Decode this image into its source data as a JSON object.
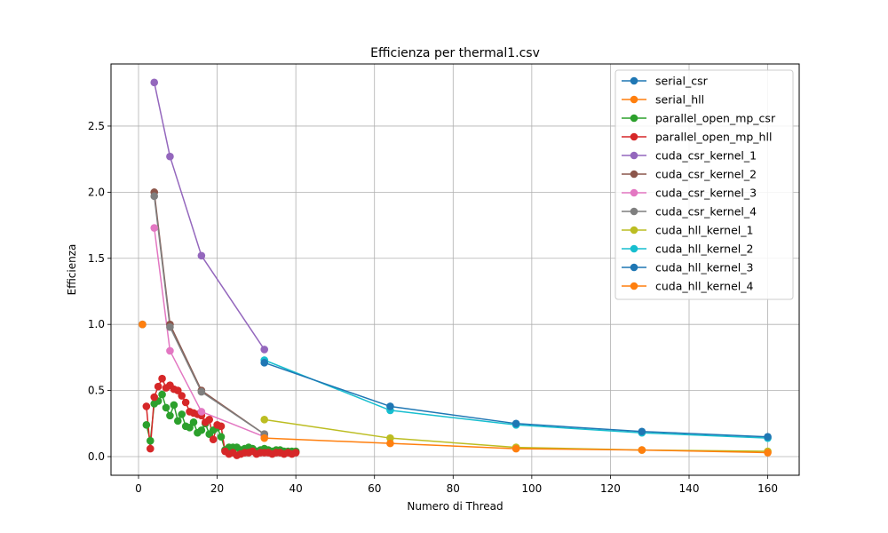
{
  "chart_data": {
    "type": "line",
    "title": "Efficienza per thermal1.csv",
    "xlabel": "Numero di Thread",
    "ylabel": "Efficienza",
    "xlim": [
      -7,
      168
    ],
    "ylim": [
      -0.141,
      2.97
    ],
    "xticks": [
      0,
      20,
      40,
      60,
      80,
      100,
      120,
      140,
      160
    ],
    "yticks": [
      0.0,
      0.5,
      1.0,
      1.5,
      2.0,
      2.5
    ],
    "xtick_labels": [
      "0",
      "20",
      "40",
      "60",
      "80",
      "100",
      "120",
      "140",
      "160"
    ],
    "ytick_labels": [
      "0.0",
      "0.5",
      "1.0",
      "1.5",
      "2.0",
      "2.5"
    ],
    "grid": true,
    "legend_position": "top-right",
    "series": [
      {
        "name": "serial_csr",
        "color": "#1f77b4",
        "x": [
          1
        ],
        "y": [
          1.0
        ]
      },
      {
        "name": "serial_hll",
        "color": "#ff7f0e",
        "x": [
          1
        ],
        "y": [
          1.0
        ]
      },
      {
        "name": "parallel_open_mp_csr",
        "color": "#2ca02c",
        "x": [
          2,
          3,
          4,
          5,
          6,
          7,
          8,
          9,
          10,
          11,
          12,
          13,
          14,
          15,
          16,
          17,
          18,
          19,
          20,
          21,
          22,
          23,
          24,
          25,
          26,
          27,
          28,
          29,
          30,
          31,
          32,
          33,
          34,
          35,
          36,
          37,
          38,
          39,
          40
        ],
        "y": [
          0.24,
          0.12,
          0.4,
          0.42,
          0.47,
          0.37,
          0.31,
          0.39,
          0.27,
          0.32,
          0.23,
          0.22,
          0.26,
          0.18,
          0.2,
          0.25,
          0.17,
          0.2,
          0.22,
          0.15,
          0.05,
          0.07,
          0.07,
          0.07,
          0.05,
          0.06,
          0.07,
          0.06,
          0.04,
          0.05,
          0.06,
          0.05,
          0.04,
          0.05,
          0.05,
          0.04,
          0.04,
          0.04,
          0.04
        ]
      },
      {
        "name": "parallel_open_mp_hll",
        "color": "#d62728",
        "x": [
          2,
          3,
          4,
          5,
          6,
          7,
          8,
          9,
          10,
          11,
          12,
          13,
          14,
          15,
          16,
          17,
          18,
          19,
          20,
          21,
          22,
          23,
          24,
          25,
          26,
          27,
          28,
          29,
          30,
          31,
          32,
          33,
          34,
          35,
          36,
          37,
          38,
          39,
          40
        ],
        "y": [
          0.38,
          0.06,
          0.45,
          0.53,
          0.59,
          0.52,
          0.54,
          0.51,
          0.5,
          0.46,
          0.41,
          0.34,
          0.33,
          0.32,
          0.31,
          0.26,
          0.28,
          0.13,
          0.24,
          0.23,
          0.04,
          0.02,
          0.03,
          0.01,
          0.02,
          0.03,
          0.03,
          0.04,
          0.02,
          0.03,
          0.03,
          0.03,
          0.02,
          0.03,
          0.03,
          0.02,
          0.03,
          0.02,
          0.03
        ]
      },
      {
        "name": "cuda_csr_kernel_1",
        "color": "#9467bd",
        "x": [
          4,
          8,
          16,
          32
        ],
        "y": [
          2.83,
          2.27,
          1.52,
          0.81
        ]
      },
      {
        "name": "cuda_csr_kernel_2",
        "color": "#8c564b",
        "x": [
          4,
          8,
          16,
          32
        ],
        "y": [
          2.0,
          1.0,
          0.5,
          0.17
        ]
      },
      {
        "name": "cuda_csr_kernel_3",
        "color": "#e377c2",
        "x": [
          4,
          8,
          16,
          32
        ],
        "y": [
          1.73,
          0.8,
          0.34,
          0.15
        ]
      },
      {
        "name": "cuda_csr_kernel_4",
        "color": "#7f7f7f",
        "x": [
          4,
          8,
          16,
          32
        ],
        "y": [
          1.97,
          0.98,
          0.49,
          0.17
        ]
      },
      {
        "name": "cuda_hll_kernel_1",
        "color": "#bcbd22",
        "x": [
          32,
          64,
          96,
          128,
          160
        ],
        "y": [
          0.28,
          0.14,
          0.07,
          0.05,
          0.04
        ]
      },
      {
        "name": "cuda_hll_kernel_2",
        "color": "#17becf",
        "x": [
          32,
          64,
          96,
          128,
          160
        ],
        "y": [
          0.73,
          0.35,
          0.24,
          0.18,
          0.14
        ]
      },
      {
        "name": "cuda_hll_kernel_3",
        "color": "#1f77b4",
        "x": [
          32,
          64,
          96,
          128,
          160
        ],
        "y": [
          0.71,
          0.38,
          0.25,
          0.19,
          0.15
        ]
      },
      {
        "name": "cuda_hll_kernel_4",
        "color": "#ff7f0e",
        "x": [
          32,
          64,
          96,
          128,
          160
        ],
        "y": [
          0.14,
          0.1,
          0.06,
          0.05,
          0.03
        ]
      }
    ]
  }
}
